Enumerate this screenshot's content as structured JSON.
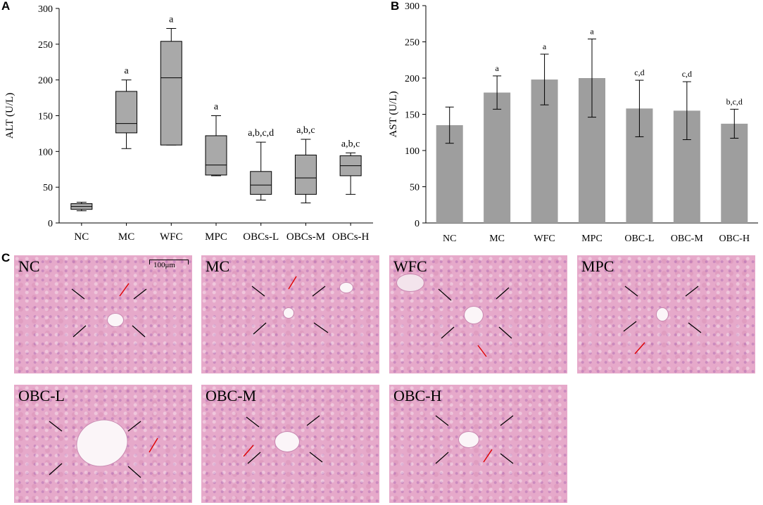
{
  "panels": {
    "a": "A",
    "b": "B",
    "c": "C"
  },
  "chart_data": [
    {
      "type": "box",
      "ylabel": "ALT (U/L)",
      "ylim": [
        0,
        300
      ],
      "yticks": [
        0,
        50,
        100,
        150,
        200,
        250,
        300
      ],
      "categories": [
        "NC",
        "MC",
        "WFC",
        "MPC",
        "OBCs-L",
        "OBCs-M",
        "OBCs-H"
      ],
      "boxes": [
        {
          "min": 17,
          "q1": 19,
          "median": 23,
          "q3": 27,
          "max": 29
        },
        {
          "min": 104,
          "q1": 126,
          "median": 139,
          "q3": 184,
          "max": 200
        },
        {
          "min": 109,
          "q1": 109,
          "median": 203,
          "q3": 254,
          "max": 272
        },
        {
          "min": 66,
          "q1": 67,
          "median": 81,
          "q3": 122,
          "max": 150
        },
        {
          "min": 32,
          "q1": 40,
          "median": 53,
          "q3": 72,
          "max": 113
        },
        {
          "min": 28,
          "q1": 40,
          "median": 63,
          "q3": 95,
          "max": 117
        },
        {
          "min": 40,
          "q1": 66,
          "median": 80,
          "q3": 94,
          "max": 98
        }
      ],
      "annotations": [
        "",
        "a",
        "a",
        "a",
        "a,b,c,d",
        "a,b,c",
        "a,b,c"
      ]
    },
    {
      "type": "bar",
      "ylabel": "AST (U/L)",
      "ylim": [
        0,
        300
      ],
      "yticks": [
        0,
        50,
        100,
        150,
        200,
        250,
        300
      ],
      "categories": [
        "NC",
        "MC",
        "WFC",
        "MPC",
        "OBC-L",
        "OBC-M",
        "OBC-H"
      ],
      "values": [
        135,
        180,
        198,
        200,
        158,
        155,
        137
      ],
      "errors": [
        25,
        23,
        35,
        54,
        39,
        40,
        20
      ],
      "annotations": [
        "",
        "a",
        "a",
        "a",
        "c,d",
        "c,d",
        "b,c,d"
      ]
    }
  ],
  "micrographs": {
    "labels": [
      "NC",
      "MC",
      "WFC",
      "MPC",
      "OBC-L",
      "OBC-M",
      "OBC-H"
    ],
    "scale_bar": "100μm"
  }
}
